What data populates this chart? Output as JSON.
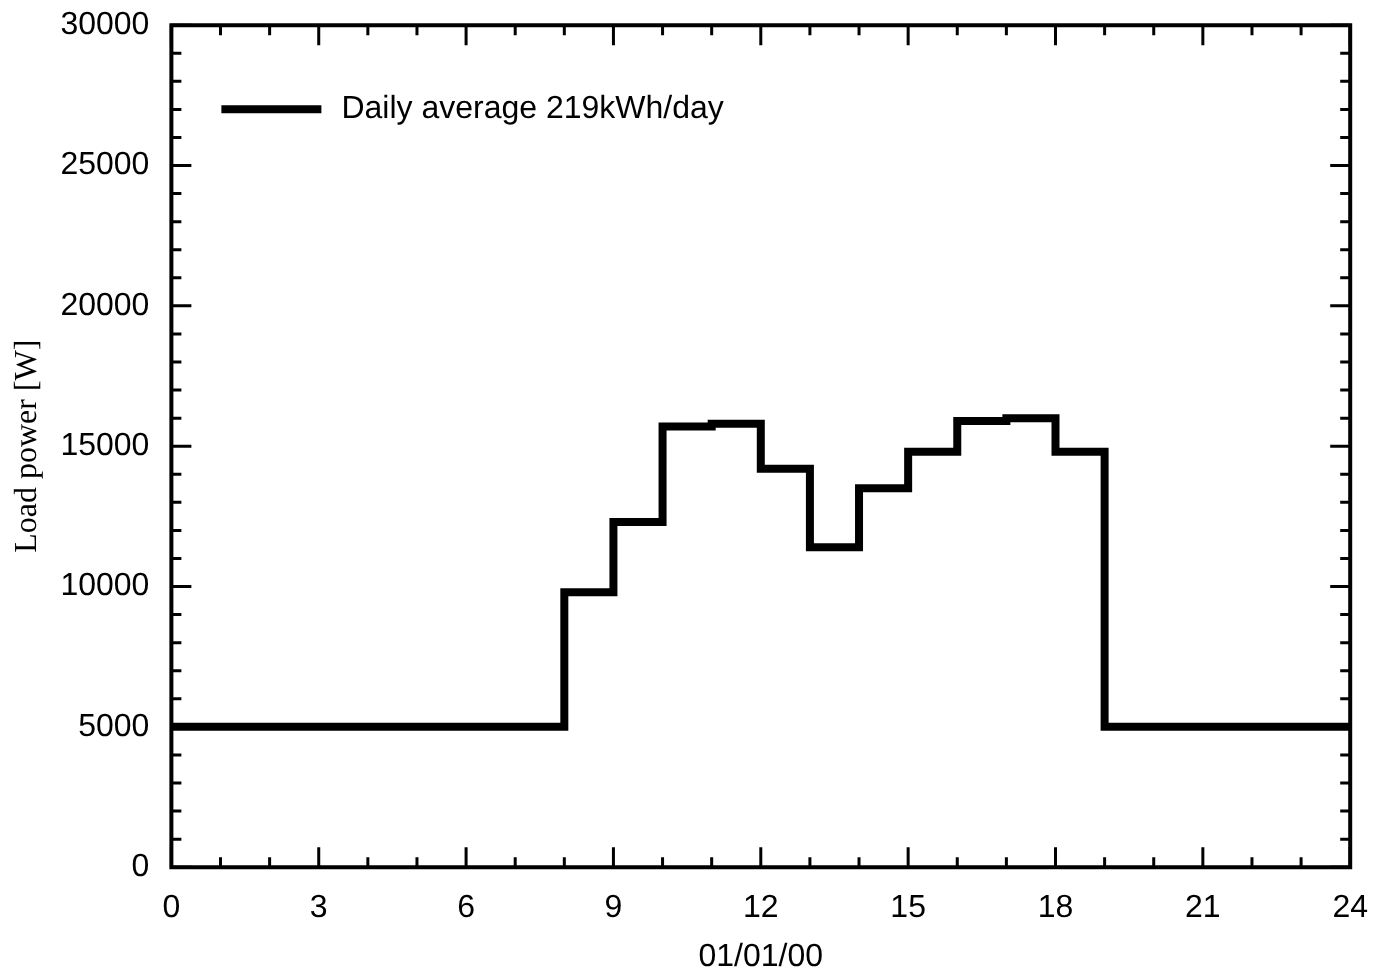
{
  "chart_data": {
    "type": "step",
    "xlabel": "01/01/00",
    "ylabel": "Load power [W]",
    "series": [
      {
        "name": "Daily average 219kWh/day",
        "color": "#000000",
        "x": [
          0,
          8,
          9,
          10,
          11,
          12,
          13,
          14,
          15,
          16,
          17,
          18,
          19,
          24
        ],
        "values": [
          5000,
          9800,
          12300,
          15700,
          15800,
          14200,
          11400,
          13500,
          14800,
          15900,
          16000,
          14800,
          5000,
          5000
        ]
      }
    ],
    "xlim": [
      0,
      24
    ],
    "ylim": [
      0,
      30000
    ],
    "xticks": [
      0,
      {
        "value": 1,
        "label": null
      },
      {
        "value": 2,
        "label": null
      },
      3,
      {
        "value": 4,
        "label": null
      },
      {
        "value": 5,
        "label": null
      },
      6,
      {
        "value": 7,
        "label": null
      },
      {
        "value": 8,
        "label": null
      },
      9,
      {
        "value": 10,
        "label": null
      },
      {
        "value": 11,
        "label": null
      },
      12,
      {
        "value": 13,
        "label": null
      },
      {
        "value": 14,
        "label": null
      },
      15,
      {
        "value": 16,
        "label": null
      },
      {
        "value": 17,
        "label": null
      },
      18,
      {
        "value": 19,
        "label": null
      },
      {
        "value": 20,
        "label": null
      },
      21,
      {
        "value": 22,
        "label": null
      },
      {
        "value": 23,
        "label": null
      },
      24
    ],
    "yticks": [
      0,
      {
        "value": 1000,
        "label": null
      },
      {
        "value": 2000,
        "label": null
      },
      {
        "value": 3000,
        "label": null
      },
      {
        "value": 4000,
        "label": null
      },
      5000,
      {
        "value": 6000,
        "label": null
      },
      {
        "value": 7000,
        "label": null
      },
      {
        "value": 8000,
        "label": null
      },
      {
        "value": 9000,
        "label": null
      },
      10000,
      {
        "value": 11000,
        "label": null
      },
      {
        "value": 12000,
        "label": null
      },
      {
        "value": 13000,
        "label": null
      },
      {
        "value": 14000,
        "label": null
      },
      15000,
      {
        "value": 16000,
        "label": null
      },
      {
        "value": 17000,
        "label": null
      },
      {
        "value": 18000,
        "label": null
      },
      {
        "value": 19000,
        "label": null
      },
      20000,
      {
        "value": 21000,
        "label": null
      },
      {
        "value": 22000,
        "label": null
      },
      {
        "value": 23000,
        "label": null
      },
      {
        "value": 24000,
        "label": null
      },
      25000,
      {
        "value": 26000,
        "label": null
      },
      {
        "value": 27000,
        "label": null
      },
      {
        "value": 28000,
        "label": null
      },
      {
        "value": 29000,
        "label": null
      },
      30000
    ],
    "grid": false,
    "legend": "top left",
    "marker": "none",
    "line_style": "solid"
  }
}
